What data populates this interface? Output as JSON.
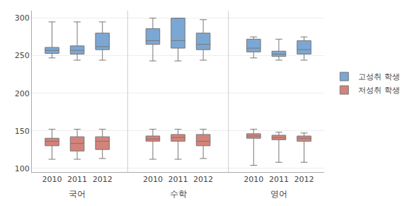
{
  "chart_data": {
    "type": "box",
    "groups": [
      "국어",
      "수학",
      "영어"
    ],
    "categories": [
      "2010",
      "2011",
      "2012"
    ],
    "series": [
      {
        "name": "고성취 학생",
        "color": "#7BA7D4",
        "values": [
          [
            {
              "whislo": 247,
              "q1": 253,
              "med": 257,
              "q3": 261,
              "whishi": 295
            },
            {
              "whislo": 244,
              "q1": 252,
              "med": 257,
              "q3": 263,
              "whishi": 295
            },
            {
              "whislo": 244,
              "q1": 258,
              "med": 262,
              "q3": 280,
              "whishi": 295
            }
          ],
          [
            {
              "whislo": 243,
              "q1": 265,
              "med": 270,
              "q3": 286,
              "whishi": 300
            },
            {
              "whislo": 243,
              "q1": 260,
              "med": 270,
              "q3": 300,
              "whishi": 300
            },
            {
              "whislo": 244,
              "q1": 258,
              "med": 265,
              "q3": 280,
              "whishi": 298
            }
          ],
          [
            {
              "whislo": 247,
              "q1": 255,
              "med": 260,
              "q3": 272,
              "whishi": 275
            },
            {
              "whislo": 244,
              "q1": 249,
              "med": 252,
              "q3": 256,
              "whishi": 272
            },
            {
              "whislo": 244,
              "q1": 252,
              "med": 258,
              "q3": 270,
              "whishi": 275
            }
          ]
        ]
      },
      {
        "name": "저성취 학생",
        "color": "#D4837A",
        "values": [
          [
            {
              "whislo": 112,
              "q1": 130,
              "med": 136,
              "q3": 140,
              "whishi": 152
            },
            {
              "whislo": 112,
              "q1": 123,
              "med": 133,
              "q3": 142,
              "whishi": 152
            },
            {
              "whislo": 113,
              "q1": 125,
              "med": 136,
              "q3": 142,
              "whishi": 152
            }
          ],
          [
            {
              "whislo": 112,
              "q1": 136,
              "med": 139,
              "q3": 143,
              "whishi": 152
            },
            {
              "whislo": 112,
              "q1": 136,
              "med": 141,
              "q3": 145,
              "whishi": 152
            },
            {
              "whislo": 113,
              "q1": 130,
              "med": 136,
              "q3": 145,
              "whishi": 152
            }
          ],
          [
            {
              "whislo": 104,
              "q1": 140,
              "med": 143,
              "q3": 146,
              "whishi": 152
            },
            {
              "whislo": 108,
              "q1": 138,
              "med": 141,
              "q3": 144,
              "whishi": 148
            },
            {
              "whislo": 108,
              "q1": 136,
              "med": 140,
              "q3": 143,
              "whishi": 147
            }
          ]
        ]
      }
    ],
    "ylim": [
      95,
      310
    ],
    "yticks": [
      100,
      150,
      200,
      250,
      300
    ],
    "grid": true,
    "legend": "right"
  }
}
